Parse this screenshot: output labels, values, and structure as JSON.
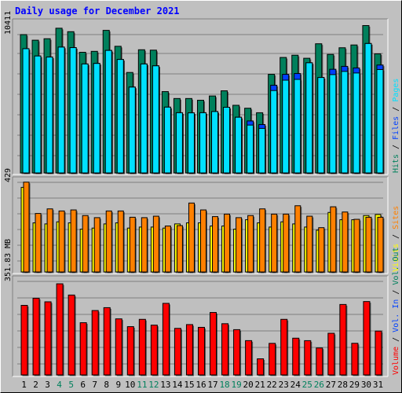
{
  "chart_data": {
    "type": "bar",
    "title": "Daily usage for December 2021",
    "categories": [
      "1",
      "2",
      "3",
      "4",
      "5",
      "6",
      "7",
      "8",
      "9",
      "10",
      "11",
      "12",
      "13",
      "14",
      "15",
      "16",
      "17",
      "18",
      "19",
      "20",
      "21",
      "22",
      "23",
      "24",
      "25",
      "26",
      "27",
      "28",
      "29",
      "30",
      "31"
    ],
    "weekend_days": [
      "4",
      "5",
      "11",
      "12",
      "18",
      "19",
      "25",
      "26"
    ],
    "panels": [
      {
        "name": "hits-pages-files",
        "ymax_label": "10411",
        "ymax": 10411,
        "legend": [
          {
            "text": "Hits",
            "color": "#00805c"
          },
          {
            "text": "Files",
            "color": "#0040ff"
          },
          {
            "text": "Pages",
            "color": "#00e0ff"
          }
        ],
        "series": [
          {
            "name": "Hits",
            "color": "#00805c",
            "values": [
              10410,
              9990,
              10100,
              10890,
              10630,
              9080,
              9150,
              10730,
              9530,
              7560,
              9270,
              9240,
              6120,
              5600,
              5600,
              5470,
              5790,
              6180,
              5090,
              4870,
              4530,
              7420,
              8690,
              8860,
              8630,
              9720,
              8920,
              9420,
              9630,
              11090,
              8960
            ]
          },
          {
            "name": "Files",
            "color": "#0040ff",
            "values": [
              9350,
              8800,
              8720,
              9470,
              9430,
              8200,
              8240,
              9220,
              8540,
              6460,
              8200,
              8060,
              4950,
              4530,
              4520,
              4530,
              4620,
              4940,
              4190,
              3910,
              3640,
              6600,
              7420,
              7480,
              8290,
              7180,
              7800,
              8020,
              7900,
              9740,
              8120
            ]
          },
          {
            "name": "Pages",
            "color": "#00e0ff",
            "values": [
              9350,
              8800,
              8720,
              9470,
              9430,
              8200,
              8240,
              9220,
              8540,
              6460,
              8200,
              8060,
              4950,
              4530,
              4520,
              4530,
              4620,
              4940,
              4190,
              3600,
              3350,
              6200,
              6980,
              7040,
              8290,
              7180,
              7400,
              7640,
              7520,
              9740,
              7780
            ]
          }
        ]
      },
      {
        "name": "visits-sites",
        "ymax_label": "429",
        "ymax": 429,
        "legend": [
          {
            "text": "Visits",
            "color": "#ffff00"
          },
          {
            "text": "Sites",
            "color": "#ff8000"
          }
        ],
        "series": [
          {
            "name": "Visits",
            "color": "#ffff00",
            "values": [
              405,
              235,
              230,
              240,
              235,
              205,
              210,
              230,
              235,
              210,
              215,
              215,
              210,
              230,
              235,
              235,
              220,
              220,
              205,
              250,
              235,
              215,
              240,
              230,
              215,
              200,
              285,
              250,
              250,
              270,
              275
            ]
          },
          {
            "name": "Sites",
            "color": "#ff8000",
            "values": [
              430,
              280,
              302,
              292,
              297,
              270,
              260,
              292,
              292,
              262,
              260,
              267,
              220,
              222,
              330,
              297,
              265,
              277,
              260,
              270,
              302,
              277,
              277,
              317,
              267,
              212,
              312,
              287,
              252,
              262,
              262
            ]
          }
        ]
      },
      {
        "name": "volume",
        "ymax_label": "351.83 MB",
        "ymax": 351.83,
        "legend": [
          {
            "text": "Volume",
            "color": "#ff0000"
          },
          {
            "text": "Vol. In",
            "color": "#0040ff"
          },
          {
            "text": "Vol. Out",
            "color": "#00805c"
          }
        ],
        "series": [
          {
            "name": "Volume",
            "color": "#ff0000",
            "values": [
              261.7,
              288.5,
              275.0,
              342.8,
              300.5,
              196.4,
              242.2,
              253.0,
              210.9,
              181.6,
              209.1,
              187.2,
              269.2,
              175.1,
              189.4,
              179.0,
              234.9,
              192.7,
              170.3,
              129.0,
              60.6,
              118.7,
              209.1,
              138.2,
              128.9,
              101.4,
              156.7,
              265.0,
              119.0,
              276.0,
              165.0
            ]
          }
        ]
      }
    ]
  }
}
